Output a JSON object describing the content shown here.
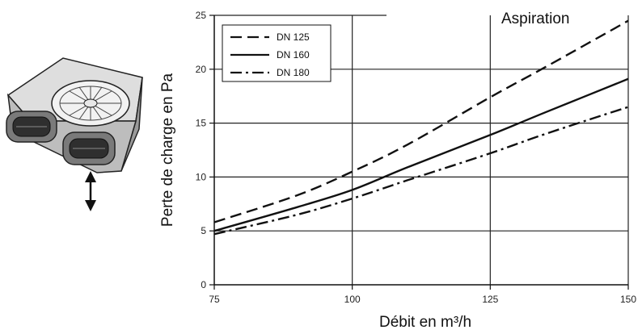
{
  "chart_data": {
    "type": "line",
    "title": "Aspiration",
    "xlabel": "Débit en m³/h",
    "ylabel": "Perte de charge en Pa",
    "xlim": [
      75,
      150
    ],
    "ylim": [
      0,
      25
    ],
    "x_ticks": [
      75,
      100,
      125,
      150
    ],
    "y_ticks": [
      0,
      5,
      10,
      15,
      20,
      25
    ],
    "grid": true,
    "legend_position": "top-left",
    "series": [
      {
        "name": "DN 125",
        "dash": "dashed",
        "x": [
          75,
          90,
          100,
          110,
          125,
          135,
          150
        ],
        "y": [
          5.8,
          8.3,
          10.5,
          13.0,
          17.4,
          20.2,
          24.5
        ]
      },
      {
        "name": "DN 160",
        "dash": "solid",
        "x": [
          75,
          90,
          100,
          110,
          125,
          135,
          150
        ],
        "y": [
          5.0,
          7.2,
          8.8,
          10.9,
          13.9,
          16.0,
          19.1
        ]
      },
      {
        "name": "DN 180",
        "dash": "dashdot",
        "x": [
          75,
          90,
          100,
          110,
          125,
          135,
          150
        ],
        "y": [
          4.7,
          6.5,
          8.0,
          9.7,
          12.2,
          14.0,
          16.5
        ]
      }
    ]
  },
  "colors": {
    "line": "#111111",
    "grid": "#222222",
    "device_body": "#cfcfcf",
    "device_top": "#e4e4e4"
  },
  "icons": {
    "device": "ventilation-plenum-box-icon",
    "arrow": "double-vertical-arrow-icon"
  }
}
